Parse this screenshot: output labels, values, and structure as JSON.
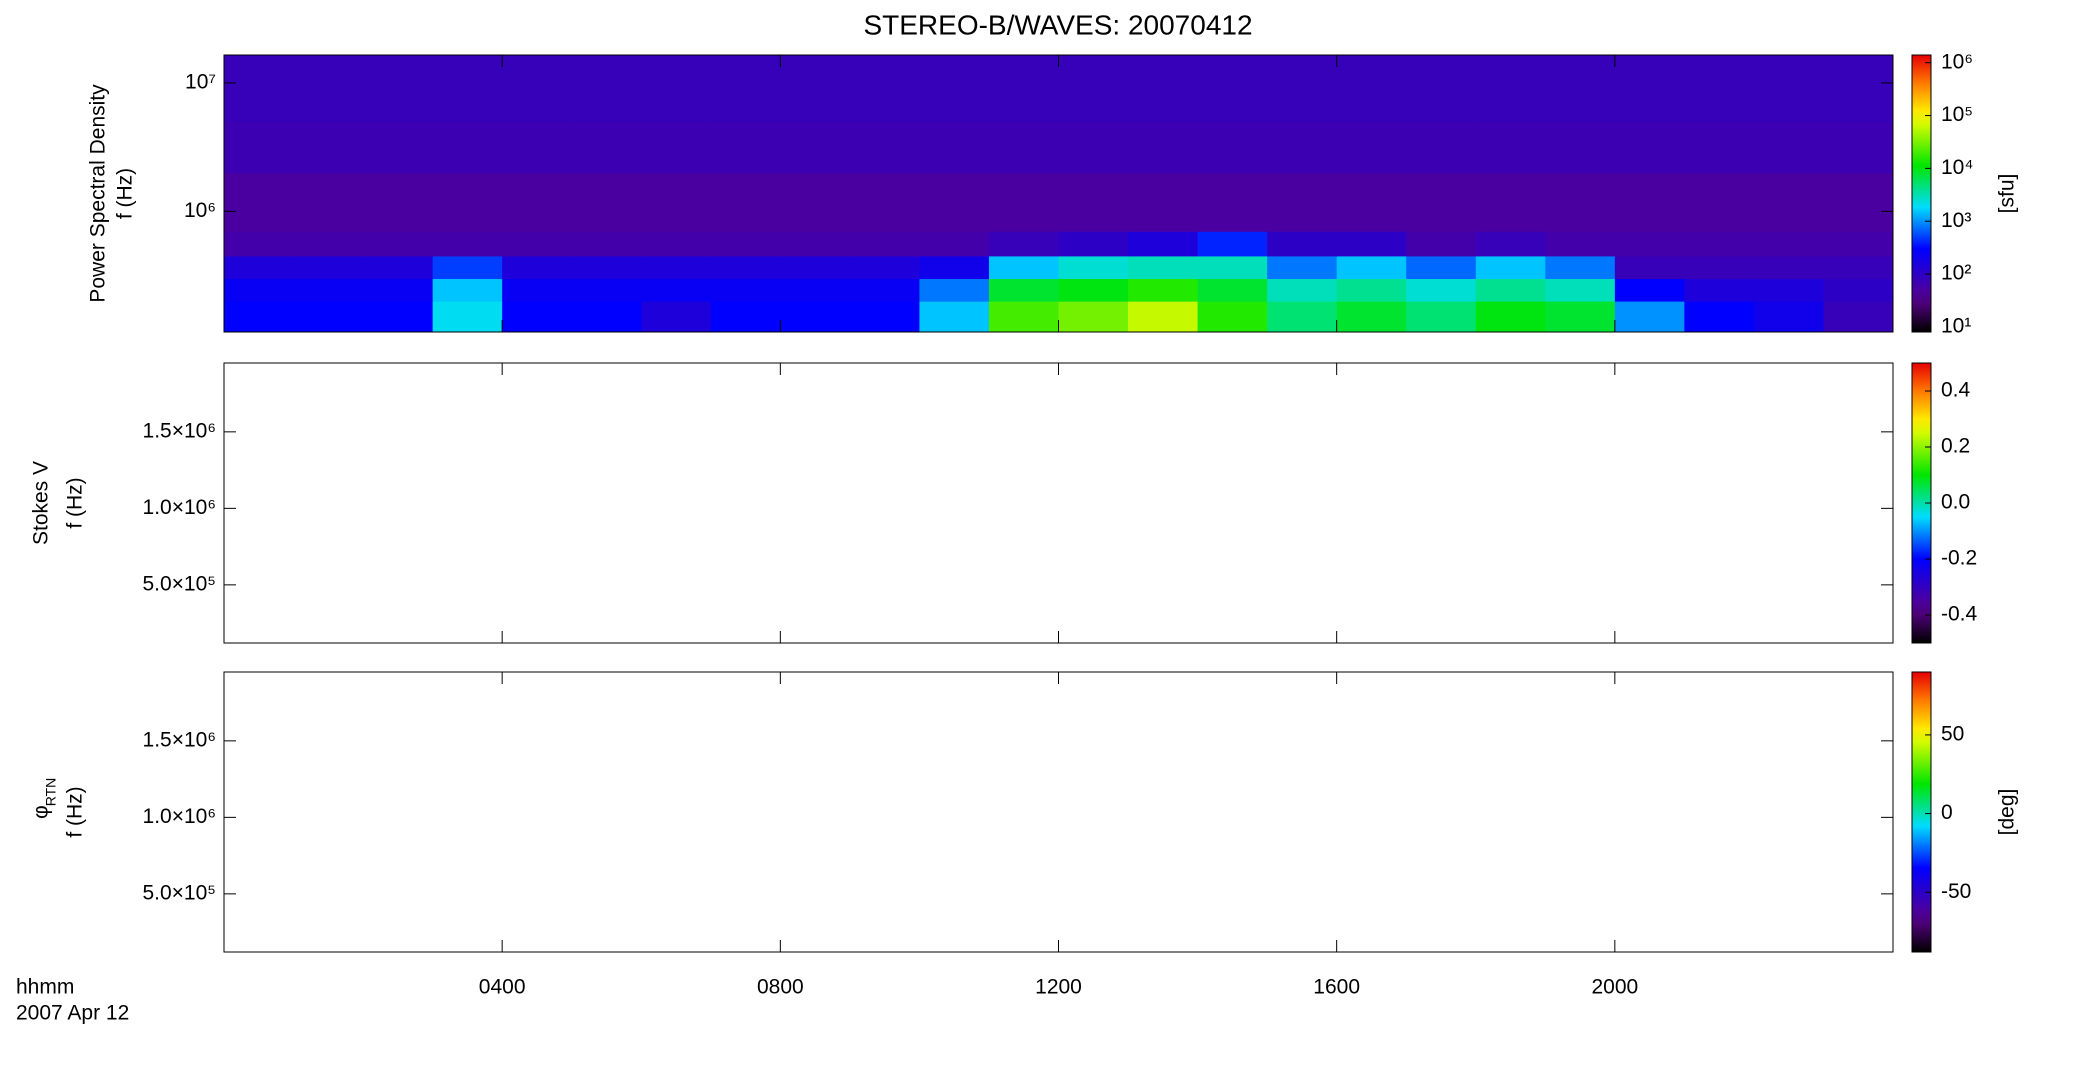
{
  "chart_data": [
    {
      "type": "heatmap",
      "title": "STEREO-B/WAVES: 20070412",
      "ylabel": [
        "Power Spectral Density",
        "f (Hz)"
      ],
      "ylog": true,
      "ylim": [
        115000,
        16500000
      ],
      "yticks": [
        {
          "value": 1000000,
          "label": "10⁶"
        },
        {
          "value": 10000000,
          "label": "10⁷"
        }
      ],
      "time_edges": [
        0,
        1,
        2,
        3,
        4,
        5,
        6,
        7,
        8,
        9,
        10,
        11,
        12,
        13,
        14,
        15,
        16,
        17,
        18,
        19,
        20,
        21,
        22,
        23,
        24
      ],
      "freq_edges": [
        115000,
        200000,
        300000,
        450000,
        700000,
        1100000,
        2000000,
        5000000,
        16500000
      ],
      "values": [
        [
          300,
          300,
          300,
          2000,
          300,
          300,
          150,
          300,
          300,
          300,
          1500,
          20000,
          30000,
          60000,
          15000,
          5000,
          8000,
          5000,
          10000,
          8000,
          1000,
          300,
          200,
          80
        ],
        [
          250,
          250,
          250,
          1500,
          250,
          250,
          250,
          250,
          250,
          250,
          800,
          8000,
          10000,
          15000,
          8000,
          3000,
          4000,
          2500,
          4000,
          3000,
          300,
          150,
          150,
          100
        ],
        [
          150,
          150,
          150,
          500,
          150,
          150,
          150,
          150,
          150,
          150,
          200,
          1500,
          2500,
          3000,
          3000,
          800,
          1500,
          700,
          1500,
          800,
          80,
          80,
          80,
          80
        ],
        [
          60,
          60,
          60,
          60,
          60,
          60,
          60,
          60,
          60,
          60,
          60,
          80,
          100,
          150,
          400,
          100,
          100,
          60,
          80,
          60,
          60,
          60,
          60,
          60
        ],
        [
          50,
          50,
          50,
          50,
          50,
          50,
          50,
          50,
          50,
          50,
          50,
          50,
          50,
          50,
          50,
          50,
          50,
          50,
          50,
          50,
          50,
          50,
          50,
          50
        ],
        [
          50,
          50,
          50,
          50,
          50,
          50,
          50,
          50,
          50,
          50,
          50,
          50,
          50,
          50,
          50,
          50,
          50,
          50,
          50,
          50,
          50,
          50,
          50,
          50
        ],
        [
          70,
          70,
          70,
          70,
          70,
          70,
          70,
          70,
          70,
          70,
          70,
          70,
          70,
          70,
          70,
          70,
          70,
          70,
          70,
          70,
          70,
          70,
          70,
          70
        ],
        [
          80,
          80,
          80,
          80,
          80,
          80,
          80,
          80,
          80,
          80,
          80,
          80,
          80,
          80,
          80,
          80,
          80,
          80,
          80,
          80,
          80,
          80,
          80,
          80
        ]
      ],
      "zlog": true,
      "zlim": [
        8,
        1400000
      ],
      "zticks": [
        {
          "value": 10,
          "label": "10¹"
        },
        {
          "value": 100,
          "label": "10²"
        },
        {
          "value": 1000,
          "label": "10³"
        },
        {
          "value": 10000,
          "label": "10⁴"
        },
        {
          "value": 100000,
          "label": "10⁵"
        },
        {
          "value": 1000000,
          "label": "10⁶"
        }
      ],
      "zlabel": "[sfu]",
      "xlim": [
        0,
        24
      ]
    },
    {
      "type": "heatmap",
      "ylabel": [
        "Stokes V",
        "f (Hz)"
      ],
      "ylim": [
        120000,
        1950000
      ],
      "yticks": [
        {
          "value": 500000,
          "label": "5.0×10⁵"
        },
        {
          "value": 1000000,
          "label": "1.0×10⁶"
        },
        {
          "value": 1500000,
          "label": "1.5×10⁶"
        }
      ],
      "zlim": [
        -0.5,
        0.5
      ],
      "zticks": [
        -0.4,
        -0.2,
        {
          "value": 0,
          "label": "0.0"
        },
        0.2,
        0.4
      ],
      "xlim": [
        0,
        24
      ]
    },
    {
      "type": "heatmap",
      "ylabel": [
        "φ",
        "f (Hz)"
      ],
      "ylabel_sub": "RTN",
      "ylim": [
        120000,
        1950000
      ],
      "yticks": [
        {
          "value": 500000,
          "label": "5.0×10⁵"
        },
        {
          "value": 1000000,
          "label": "1.0×10⁶"
        },
        {
          "value": 1500000,
          "label": "1.5×10⁶"
        }
      ],
      "zlim": [
        -88,
        90
      ],
      "zticks": [
        -50,
        0,
        50
      ],
      "zlabel": "[deg]",
      "xlim": [
        0,
        24
      ],
      "xticks": [
        {
          "value": 4,
          "label": "0400"
        },
        {
          "value": 8,
          "label": "0800"
        },
        {
          "value": 12,
          "label": "1200"
        },
        {
          "value": 16,
          "label": "1600"
        },
        {
          "value": 20,
          "label": "2000"
        }
      ],
      "xlabel": "hhmm",
      "date": "2007 Apr 12"
    }
  ]
}
